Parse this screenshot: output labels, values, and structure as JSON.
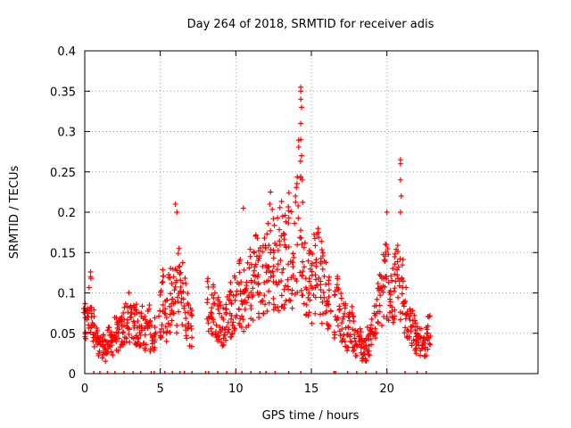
{
  "chart_data": {
    "type": "scatter",
    "title": "Day 264 of 2018, SRMTID for receiver adis",
    "xlabel": "GPS time / hours",
    "ylabel": "SRMTID / TECUs",
    "xlim": [
      0,
      30
    ],
    "ylim": [
      0,
      0.4
    ],
    "x_ticks": [
      0,
      5,
      10,
      15,
      20
    ],
    "x_tick_labels": [
      "0",
      "5",
      "10",
      "15",
      "20"
    ],
    "y_ticks": [
      0,
      0.05,
      0.1,
      0.15,
      0.2,
      0.25,
      0.3,
      0.35,
      0.4
    ],
    "y_tick_labels": [
      "0",
      "0.05",
      "0.1",
      "0.15",
      "0.2",
      "0.25",
      "0.3",
      "0.35",
      "0.4"
    ],
    "grid": true,
    "marker": "+",
    "series_color": "#ff0000",
    "series": [
      {
        "name": "SRMTID",
        "x": [
          0.0,
          0.2,
          0.4,
          0.6,
          0.8,
          1.0,
          1.2,
          1.4,
          1.6,
          1.8,
          2.0,
          2.2,
          2.4,
          2.6,
          2.8,
          3.0,
          3.2,
          3.4,
          3.6,
          3.8,
          4.0,
          4.2,
          4.4,
          4.6,
          5.0,
          5.2,
          5.4,
          5.6,
          5.8,
          6.0,
          6.2,
          6.4,
          6.6,
          6.8,
          7.0,
          8.2,
          8.4,
          8.6,
          8.8,
          9.0,
          9.2,
          9.4,
          9.6,
          9.8,
          10.0,
          10.2,
          10.4,
          10.6,
          10.8,
          11.0,
          11.2,
          11.4,
          11.6,
          11.8,
          12.0,
          12.2,
          12.4,
          12.6,
          12.8,
          13.0,
          13.2,
          13.4,
          13.6,
          13.8,
          14.0,
          14.2,
          14.4,
          14.6,
          14.8,
          15.0,
          15.2,
          15.4,
          15.6,
          15.8,
          16.0,
          16.2,
          16.6,
          16.8,
          17.0,
          17.2,
          17.4,
          17.6,
          17.8,
          18.0,
          18.2,
          18.4,
          18.6,
          18.8,
          19.0,
          19.2,
          19.4,
          19.6,
          19.8,
          20.0,
          20.2,
          20.4,
          20.6,
          20.8,
          21.0,
          21.2,
          21.4,
          21.6,
          21.8,
          22.0,
          22.2,
          22.4,
          22.6,
          22.8
        ],
        "y": [
          0.06,
          0.08,
          0.09,
          0.06,
          0.04,
          0.03,
          0.035,
          0.03,
          0.04,
          0.04,
          0.05,
          0.045,
          0.05,
          0.06,
          0.06,
          0.07,
          0.065,
          0.06,
          0.055,
          0.06,
          0.05,
          0.06,
          0.05,
          0.05,
          0.08,
          0.09,
          0.07,
          0.09,
          0.1,
          0.09,
          0.11,
          0.1,
          0.09,
          0.07,
          0.06,
          0.09,
          0.07,
          0.08,
          0.07,
          0.07,
          0.06,
          0.07,
          0.08,
          0.07,
          0.09,
          0.1,
          0.08,
          0.09,
          0.1,
          0.11,
          0.12,
          0.13,
          0.11,
          0.12,
          0.13,
          0.14,
          0.15,
          0.13,
          0.14,
          0.15,
          0.14,
          0.15,
          0.16,
          0.14,
          0.17,
          0.2,
          0.15,
          0.12,
          0.13,
          0.11,
          0.13,
          0.14,
          0.12,
          0.11,
          0.1,
          0.09,
          0.08,
          0.09,
          0.07,
          0.06,
          0.05,
          0.06,
          0.05,
          0.04,
          0.04,
          0.03,
          0.03,
          0.04,
          0.05,
          0.06,
          0.08,
          0.1,
          0.11,
          0.12,
          0.1,
          0.09,
          0.11,
          0.12,
          0.1,
          0.08,
          0.07,
          0.06,
          0.05,
          0.04,
          0.04,
          0.03,
          0.04,
          0.05
        ]
      }
    ],
    "peaks": [
      {
        "x": 14.3,
        "y": 0.355
      },
      {
        "x": 14.3,
        "y": 0.35
      },
      {
        "x": 14.3,
        "y": 0.34
      },
      {
        "x": 14.35,
        "y": 0.33
      },
      {
        "x": 14.3,
        "y": 0.31
      },
      {
        "x": 14.3,
        "y": 0.29
      },
      {
        "x": 14.35,
        "y": 0.27
      },
      {
        "x": 14.4,
        "y": 0.24
      },
      {
        "x": 20.9,
        "y": 0.265
      },
      {
        "x": 20.9,
        "y": 0.26
      },
      {
        "x": 20.9,
        "y": 0.24
      },
      {
        "x": 20.95,
        "y": 0.22
      },
      {
        "x": 20.9,
        "y": 0.2
      },
      {
        "x": 20.0,
        "y": 0.2
      },
      {
        "x": 6.0,
        "y": 0.21
      },
      {
        "x": 6.1,
        "y": 0.2
      },
      {
        "x": 12.3,
        "y": 0.225
      },
      {
        "x": 12.25,
        "y": 0.21
      },
      {
        "x": 10.5,
        "y": 0.205
      },
      {
        "x": 13.1,
        "y": 0.195
      },
      {
        "x": 16.8,
        "y": 0.105
      }
    ],
    "zero_markers": {
      "x": [
        0.6,
        1.0,
        1.5,
        2.0,
        2.6,
        3.2,
        3.7,
        4.4,
        4.6,
        5.3,
        5.8,
        6.3,
        6.6,
        7.1,
        8.0,
        8.2,
        8.8,
        9.4,
        10.0,
        10.4,
        11.0,
        11.6,
        12.0,
        12.6,
        13.5,
        14.3,
        16.5,
        16.6,
        17.4,
        18.0,
        18.6,
        19.3,
        20.0,
        21.2,
        22.0,
        22.6
      ]
    }
  }
}
